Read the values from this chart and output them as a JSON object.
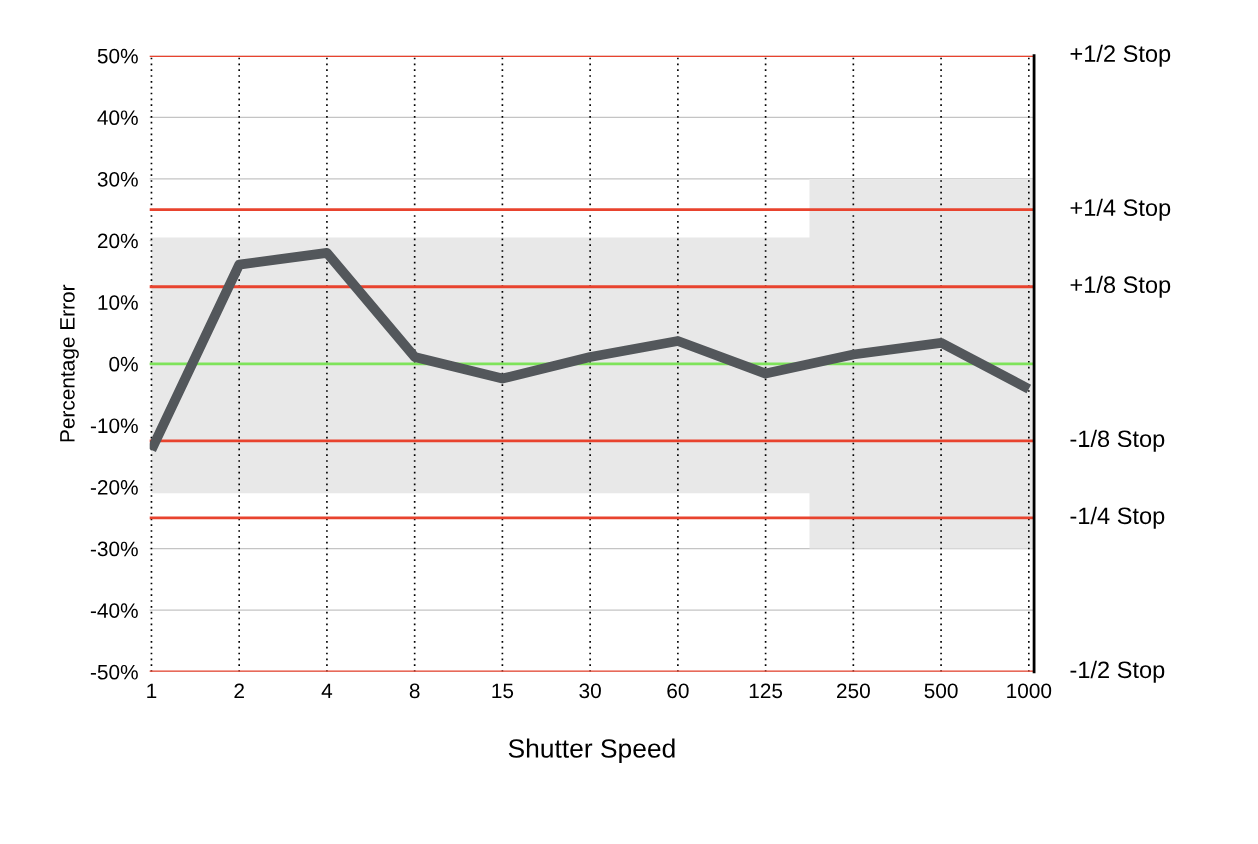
{
  "chart_data": {
    "type": "line",
    "xlabel": "Shutter Speed",
    "ylabel": "Percentage Error",
    "categories": [
      "1",
      "2",
      "4",
      "8",
      "15",
      "30",
      "60",
      "125",
      "250",
      "500",
      "1000"
    ],
    "series": [
      {
        "color": "#53575b",
        "values": [
          -14,
          16.1,
          18,
          1.1,
          -2.4,
          1.1,
          3.7,
          -1.6,
          1.5,
          3.4,
          -4.1
        ],
        "lower": [
          -21,
          -21,
          -21,
          -21,
          -21,
          -21,
          -21,
          -21,
          -30,
          -30,
          -30
        ],
        "upper": [
          20.5,
          20.5,
          20.5,
          20.5,
          20.5,
          20.5,
          20.5,
          20.5,
          30,
          30,
          30
        ]
      }
    ],
    "ylim": [
      -50,
      50
    ],
    "yticks": [
      {
        "value": -50,
        "label": "-50%"
      },
      {
        "value": -40,
        "label": "-40%"
      },
      {
        "value": -30,
        "label": "-30%"
      },
      {
        "value": -20,
        "label": "-20%"
      },
      {
        "value": -10,
        "label": "-10%"
      },
      {
        "value": 0,
        "label": "0%"
      },
      {
        "value": 10,
        "label": "10%"
      },
      {
        "value": 20,
        "label": "20%"
      },
      {
        "value": 30,
        "label": "30%"
      },
      {
        "value": 40,
        "label": "40%"
      },
      {
        "value": 50,
        "label": "50%"
      }
    ],
    "ref_lines": [
      {
        "axis": "y",
        "value": 50,
        "label": "+1/2 Stop",
        "color": "#e8432e"
      },
      {
        "axis": "y",
        "value": 25,
        "label": "+1/4 Stop",
        "color": "#e8432e"
      },
      {
        "axis": "y",
        "value": 12.5,
        "label": "+1/8 Stop",
        "color": "#e8432e"
      },
      {
        "axis": "y",
        "value": 0,
        "color": "#7ee35a"
      },
      {
        "axis": "y",
        "value": -12.5,
        "label": "-1/8 Stop",
        "color": "#e8432e"
      },
      {
        "axis": "y",
        "value": -25,
        "label": "-1/4 Stop",
        "color": "#e8432e"
      },
      {
        "axis": "y",
        "value": -50,
        "label": "-1/2 Stop",
        "color": "#e8432e"
      }
    ],
    "grid": true,
    "legend": false,
    "marker": "none",
    "line_style": "solid"
  }
}
